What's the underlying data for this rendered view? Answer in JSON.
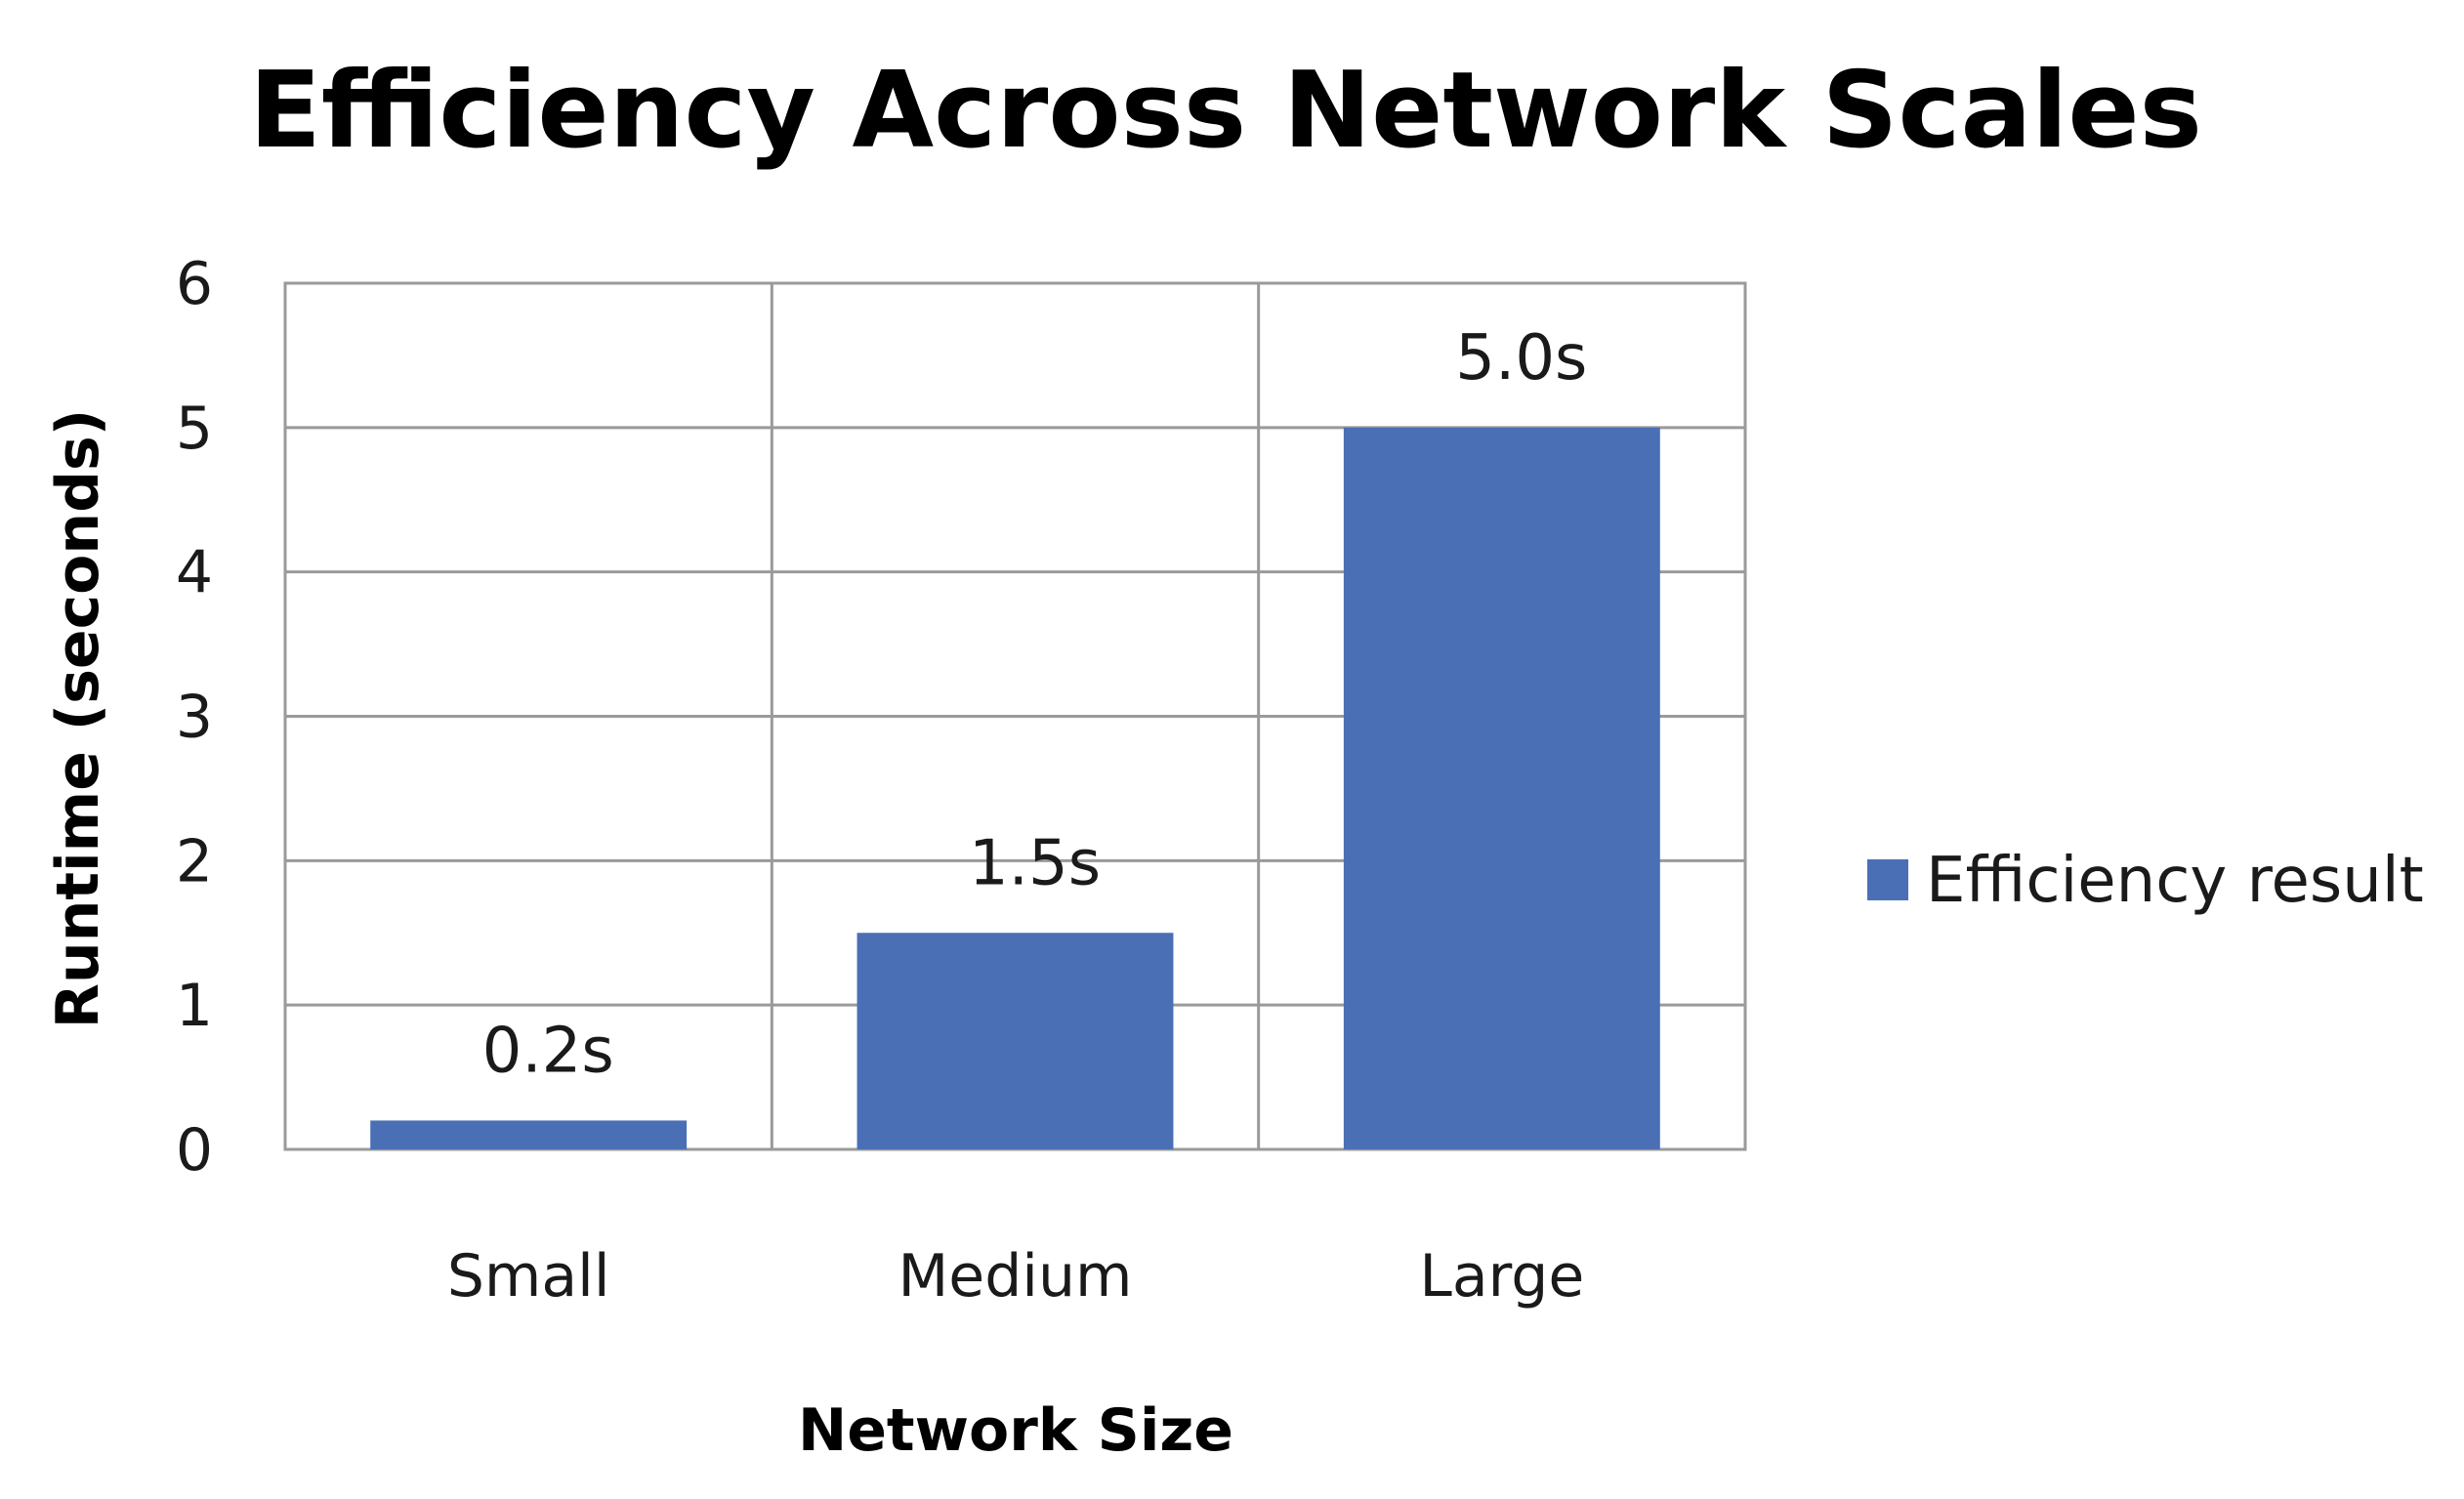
{
  "chart_data": {
    "type": "bar",
    "title": "Efficiency Across Network Scales",
    "xlabel": "Network Size",
    "ylabel": "Runtime (seconds)",
    "categories": [
      "Small",
      "Medium",
      "Large"
    ],
    "series": [
      {
        "name": "Efficiency  result",
        "values": [
          0.2,
          1.5,
          5.0
        ],
        "data_labels": [
          "0.2s",
          "1.5s",
          "5.0s"
        ],
        "color": "#4a6fb5"
      }
    ],
    "ylim": [
      0,
      6
    ],
    "yticks": [
      "0",
      "1",
      "2",
      "3",
      "4",
      "5",
      "6"
    ],
    "grid": true,
    "legend_position": "right"
  },
  "colors": {
    "bar": "#4a6fb5",
    "grid": "#9a9a9a",
    "text": "#1a1a1a"
  }
}
